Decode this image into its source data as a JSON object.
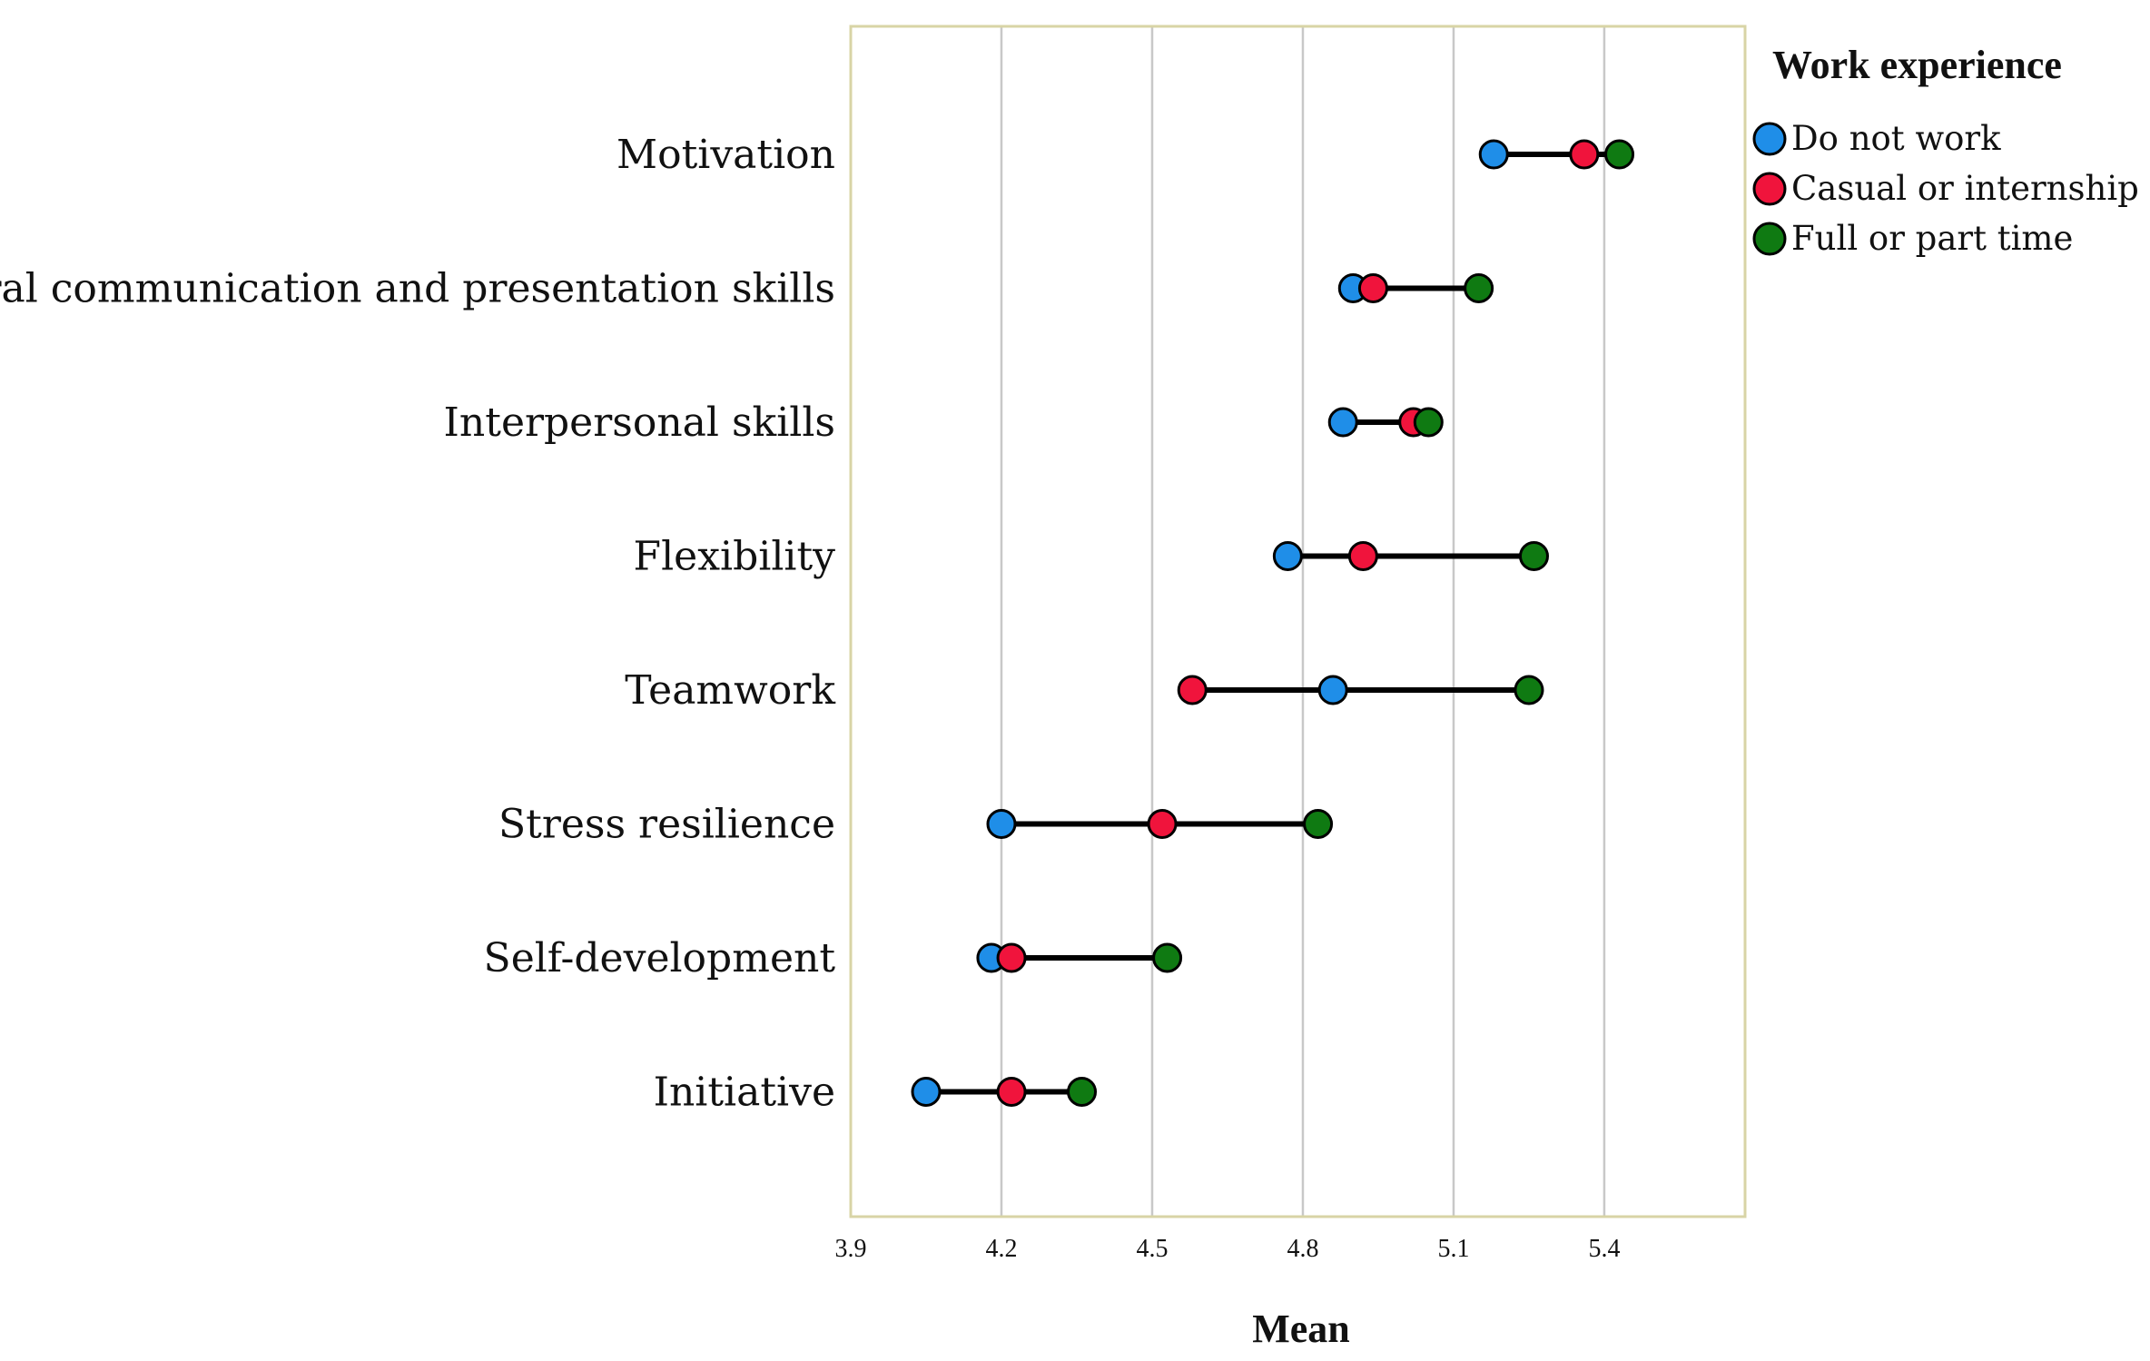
{
  "chart_data": {
    "type": "dot",
    "title": "",
    "xlabel": "Mean",
    "ylabel": "",
    "xlim": [
      3.9,
      5.68
    ],
    "xticks": [
      "3.9",
      "4.2",
      "4.5",
      "4.8",
      "5.1",
      "5.4"
    ],
    "grid": true,
    "legend_title": "Work experience",
    "legend_position": "top-right",
    "categories": [
      "Motivation",
      "Oral communication and presentation skills",
      "Interpersonal skills",
      "Flexibility",
      "Teamwork",
      "Stress resilience",
      "Self-development",
      "Initiative"
    ],
    "series": [
      {
        "name": "Do not work",
        "color": "#1f8ee8",
        "values": [
          5.18,
          4.9,
          4.88,
          4.77,
          4.86,
          4.2,
          4.18,
          4.05
        ]
      },
      {
        "name": "Casual or internship",
        "color": "#f0143c",
        "values": [
          5.36,
          4.94,
          5.02,
          4.92,
          4.58,
          4.52,
          4.22,
          4.22
        ]
      },
      {
        "name": "Full or part time",
        "color": "#0f7a12",
        "values": [
          5.43,
          5.15,
          5.05,
          5.26,
          5.25,
          4.83,
          4.53,
          4.36
        ]
      }
    ]
  }
}
